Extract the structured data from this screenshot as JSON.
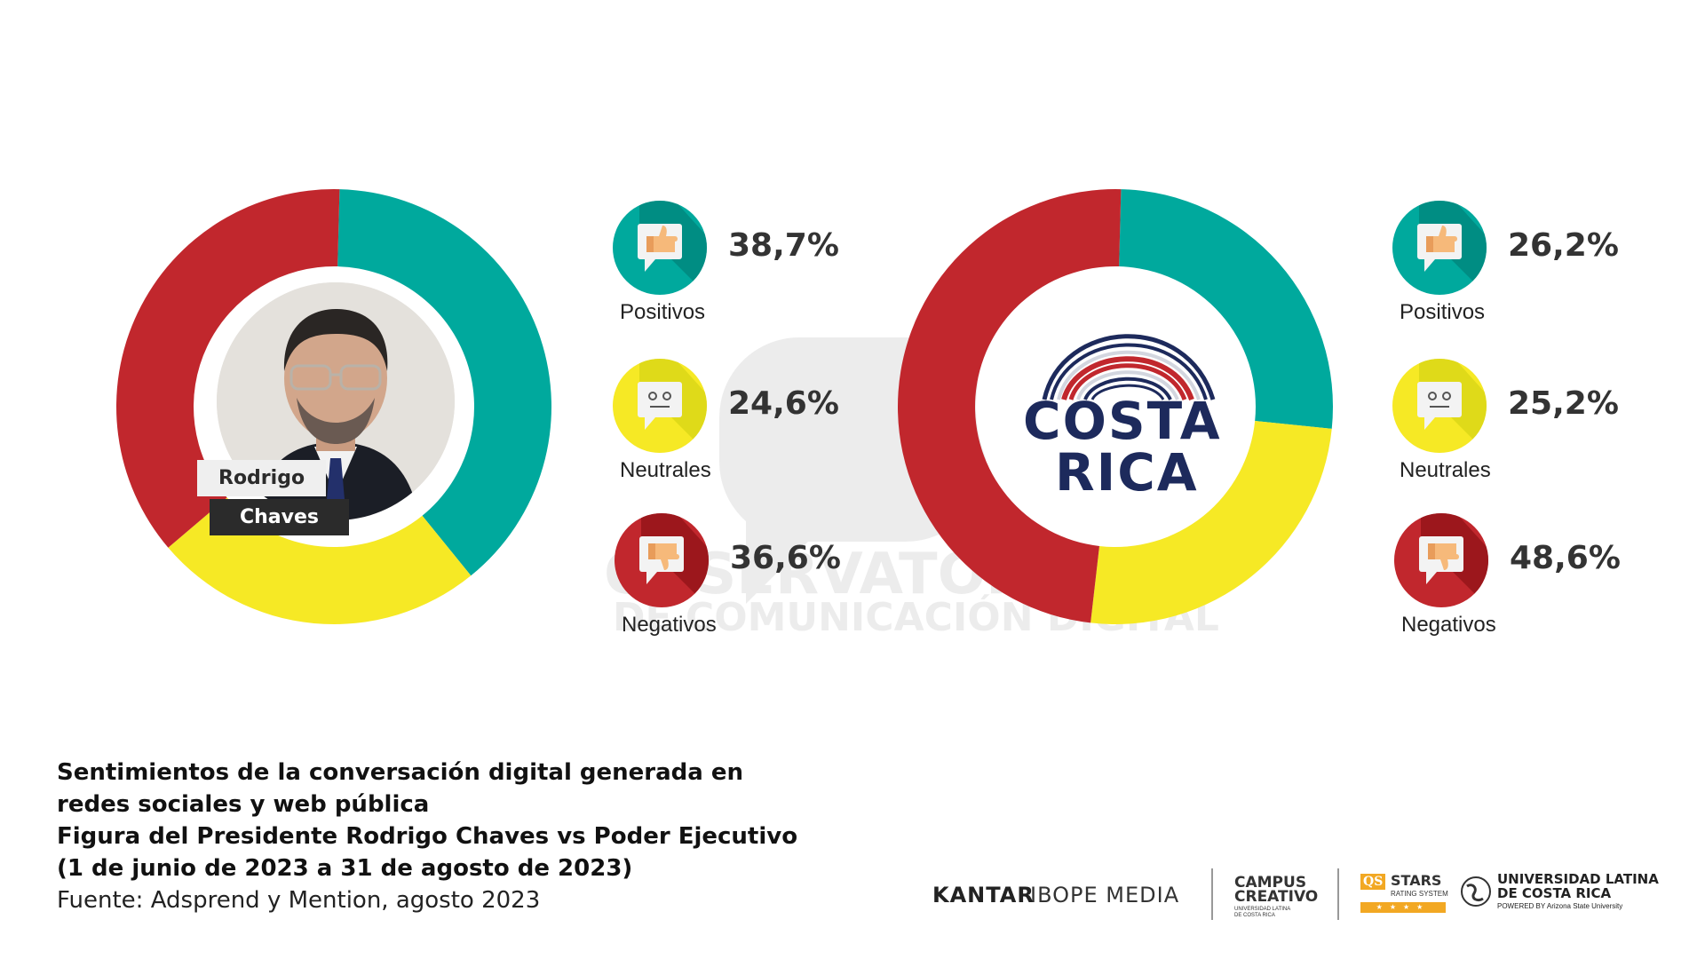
{
  "chart_data": [
    {
      "type": "pie",
      "subject": "Rodrigo Chaves",
      "categories": [
        "Positivos",
        "Neutrales",
        "Negativos"
      ],
      "values": [
        38.7,
        24.6,
        36.6
      ],
      "value_labels": [
        "38,7%",
        "24,6%",
        "36,6%"
      ],
      "colors": [
        "#00A99D",
        "#F6E925",
        "#C1272D"
      ]
    },
    {
      "type": "pie",
      "subject": "Poder Ejecutivo",
      "categories": [
        "Positivos",
        "Neutrales",
        "Negativos"
      ],
      "values": [
        26.2,
        25.2,
        48.6
      ],
      "value_labels": [
        "26,2%",
        "25,2%",
        "48,6%"
      ],
      "colors": [
        "#00A99D",
        "#F6E925",
        "#C1272D"
      ]
    }
  ],
  "left_chart": {
    "name_first": "Rodrigo",
    "name_last": "Chaves"
  },
  "right_chart": {
    "logo_line1": "COSTA",
    "logo_line2": "RICA"
  },
  "legend_icons": {
    "positivo": "thumbs-up-icon",
    "neutral": "neutral-face-icon",
    "negativo": "thumbs-down-icon"
  },
  "watermark": {
    "line1": "OBSERVATORIO",
    "line2": "DE COMUNICACIÓN DIGITAL"
  },
  "caption": {
    "line1": "Sentimientos de la conversación digital generada en",
    "line2": "redes sociales y web pública",
    "line3": "Figura del Presidente Rodrigo Chaves vs Poder Ejecutivo",
    "line4": "(1 de junio de 2023 a 31 de agosto de 2023)",
    "source": "Fuente: Adsprend y Mention, agosto 2023"
  },
  "footer_logos": {
    "kantar": "KANTAR",
    "ibope": "IBOPE MEDIA",
    "campus1": "CAMPUS",
    "campus2": "CREATIVO",
    "campus_sub1": "UNIVERSIDAD LATINA",
    "campus_sub2": "DE COSTA RICA",
    "qs": "QS",
    "stars": "STARS",
    "stars_sub": "RATING SYSTEM",
    "ulatina1": "UNIVERSIDAD LATINA",
    "ulatina2": "DE COSTA RICA",
    "ulatina_sub": "POWERED BY Arizona State University"
  },
  "colors": {
    "positivo": "#00A99D",
    "neutral": "#F6E925",
    "negativo": "#C1272D",
    "costa_rica_blue": "#1D2A5C"
  }
}
